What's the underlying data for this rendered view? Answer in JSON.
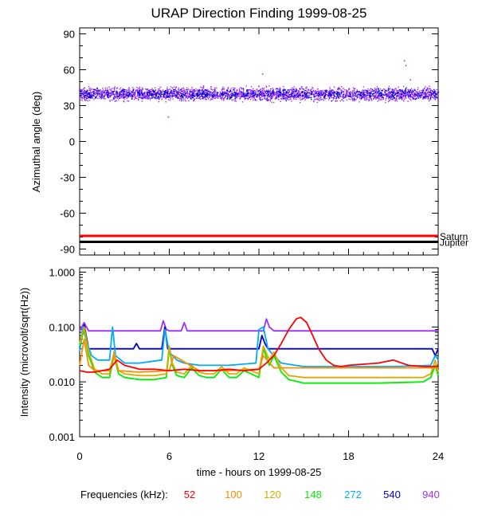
{
  "chart_data": [
    {
      "type": "scatter",
      "title": "URAP Direction Finding  1999-08-25",
      "xlabel": "",
      "ylabel": "Azimuthal angle (deg)",
      "xlim": [
        0,
        24
      ],
      "ylim": [
        -95,
        95
      ],
      "y_ticks": [
        "90",
        "60",
        "30",
        "0",
        "-30",
        "-60",
        "-90"
      ],
      "y_tick_values": [
        90,
        60,
        30,
        0,
        -30,
        -60,
        -90
      ],
      "series": [
        {
          "name": "940 kHz azimuth",
          "color": "#9b30ff",
          "center": 40,
          "spread": 8,
          "outliers": [
            [
              5.9,
              21
            ],
            [
              12.2,
              57
            ],
            [
              21.7,
              68
            ],
            [
              21.8,
              64
            ],
            [
              22.1,
              52
            ]
          ]
        },
        {
          "name": "540 kHz azimuth",
          "color": "#0000cc",
          "center": 40,
          "spread": 6
        }
      ],
      "reference_lines": [
        {
          "label": "Saturn",
          "value": -79,
          "color": "#ff0000"
        },
        {
          "label": "Jupiter",
          "value": -84,
          "color": "#000000"
        }
      ]
    },
    {
      "type": "line",
      "ylabel": "Intensity (microvolt/sqrt(Hz))",
      "xlabel": "time - hours on 1999-08-25",
      "xlim": [
        0,
        24
      ],
      "yscale": "log",
      "ylim": [
        0.001,
        1.2
      ],
      "y_ticks": [
        "1.000",
        "0.100",
        "0.010",
        "0.001"
      ],
      "y_tick_values": [
        1.0,
        0.1,
        0.01,
        0.001
      ],
      "x_ticks": [
        "0",
        "6",
        "12",
        "18",
        "24"
      ],
      "x_tick_values": [
        0,
        6,
        12,
        18,
        24
      ],
      "series": [
        {
          "name": "940",
          "color": "#9b30ff",
          "x": [
            0,
            0.3,
            0.6,
            5.4,
            5.6,
            5.8,
            6.0,
            6.8,
            7.0,
            7.2,
            12.3,
            12.5,
            12.7,
            13.0,
            24
          ],
          "y": [
            0.085,
            0.12,
            0.085,
            0.085,
            0.13,
            0.09,
            0.085,
            0.085,
            0.12,
            0.085,
            0.085,
            0.14,
            0.1,
            0.085,
            0.085
          ]
        },
        {
          "name": "540",
          "color": "#0000cc",
          "x": [
            0,
            0.3,
            0.6,
            3.6,
            3.8,
            4.0,
            5.5,
            5.7,
            5.9,
            12.0,
            12.2,
            12.4,
            12.6,
            23.6,
            23.8,
            24
          ],
          "y": [
            0.04,
            0.11,
            0.04,
            0.04,
            0.05,
            0.04,
            0.04,
            0.1,
            0.04,
            0.04,
            0.07,
            0.05,
            0.04,
            0.04,
            0.03,
            0.04
          ]
        },
        {
          "name": "272",
          "color": "#00aaff",
          "x": [
            0,
            0.2,
            0.5,
            0.8,
            1.2,
            2.0,
            2.2,
            2.4,
            3.0,
            4.0,
            5.5,
            5.7,
            6.0,
            6.5,
            7.0,
            8.0,
            10.0,
            11.8,
            12.0,
            12.3,
            12.6,
            13.0,
            13.5,
            15.0,
            18.0,
            21.0,
            23.5,
            23.8,
            24
          ],
          "y": [
            0.035,
            0.1,
            0.05,
            0.03,
            0.025,
            0.025,
            0.1,
            0.03,
            0.022,
            0.022,
            0.025,
            0.09,
            0.035,
            0.025,
            0.022,
            0.02,
            0.02,
            0.022,
            0.09,
            0.1,
            0.04,
            0.03,
            0.022,
            0.019,
            0.019,
            0.019,
            0.02,
            0.03,
            0.025
          ]
        },
        {
          "name": "148",
          "color": "#00ee00",
          "x": [
            0,
            0.3,
            0.6,
            1.0,
            1.5,
            2.0,
            2.3,
            2.6,
            3.0,
            4.0,
            5.0,
            5.8,
            6.0,
            6.2,
            6.5,
            7.0,
            7.5,
            8.0,
            8.5,
            9.0,
            9.5,
            10.0,
            10.5,
            11.0,
            12.0,
            12.3,
            12.7,
            13.0,
            13.5,
            14.0,
            15.0,
            17.0,
            20.0,
            23.0,
            23.5,
            23.8,
            24
          ],
          "y": [
            0.045,
            0.09,
            0.03,
            0.015,
            0.012,
            0.012,
            0.03,
            0.014,
            0.012,
            0.011,
            0.011,
            0.012,
            0.04,
            0.02,
            0.013,
            0.012,
            0.018,
            0.013,
            0.012,
            0.012,
            0.017,
            0.012,
            0.012,
            0.016,
            0.012,
            0.04,
            0.02,
            0.03,
            0.015,
            0.011,
            0.0095,
            0.0095,
            0.0095,
            0.01,
            0.012,
            0.02,
            0.013
          ]
        },
        {
          "name": "120",
          "color": "#ddaa00",
          "x": [
            0,
            0.3,
            0.6,
            1.0,
            1.5,
            2.0,
            2.3,
            2.6,
            3.0,
            4.0,
            5.0,
            5.8,
            6.0,
            6.2,
            6.5,
            7.0,
            7.5,
            8.0,
            8.5,
            9.0,
            9.5,
            10.0,
            10.5,
            11.0,
            12.0,
            12.3,
            12.7,
            13.0,
            13.5,
            14.0,
            15.0,
            17.0,
            20.0,
            23.0,
            23.5,
            23.8,
            24
          ],
          "y": [
            0.05,
            0.1,
            0.035,
            0.017,
            0.014,
            0.014,
            0.035,
            0.016,
            0.014,
            0.013,
            0.013,
            0.014,
            0.045,
            0.022,
            0.015,
            0.014,
            0.02,
            0.015,
            0.014,
            0.014,
            0.019,
            0.014,
            0.014,
            0.018,
            0.014,
            0.045,
            0.025,
            0.035,
            0.018,
            0.013,
            0.012,
            0.012,
            0.012,
            0.012,
            0.014,
            0.025,
            0.015
          ]
        },
        {
          "name": "100",
          "color": "#ff8c00",
          "x": [
            0,
            0.3,
            0.6,
            1.0,
            2.0,
            2.3,
            2.6,
            4.0,
            6.0,
            6.3,
            8.0,
            10.0,
            12.0,
            12.3,
            13.0,
            14.0,
            18.0,
            23.5,
            24
          ],
          "y": [
            0.02,
            0.06,
            0.02,
            0.016,
            0.016,
            0.03,
            0.016,
            0.015,
            0.016,
            0.03,
            0.016,
            0.016,
            0.017,
            0.03,
            0.018,
            0.018,
            0.018,
            0.018,
            0.018
          ]
        },
        {
          "name": "52",
          "color": "#ff0000",
          "x": [
            0,
            0.5,
            1.0,
            1.5,
            2.0,
            2.5,
            3.0,
            4.0,
            5.0,
            6.0,
            7.0,
            8.0,
            9.0,
            10.0,
            11.0,
            12.0,
            12.5,
            13.0,
            13.5,
            14.0,
            14.5,
            14.8,
            15.2,
            15.6,
            16.0,
            16.5,
            17.0,
            17.5,
            18.0,
            19.0,
            20.0,
            21.0,
            22.0,
            23.0,
            24
          ],
          "y": [
            0.016,
            0.015,
            0.015,
            0.016,
            0.017,
            0.025,
            0.02,
            0.017,
            0.017,
            0.016,
            0.017,
            0.016,
            0.016,
            0.017,
            0.016,
            0.017,
            0.022,
            0.03,
            0.05,
            0.09,
            0.14,
            0.15,
            0.12,
            0.07,
            0.04,
            0.025,
            0.02,
            0.019,
            0.02,
            0.021,
            0.022,
            0.025,
            0.02,
            0.019,
            0.019
          ]
        }
      ]
    }
  ],
  "legend": {
    "label": "Frequencies (kHz):",
    "items": [
      {
        "text": "52",
        "color": "#ff0000"
      },
      {
        "text": "100",
        "color": "#ff8c00"
      },
      {
        "text": "120",
        "color": "#ddaa00"
      },
      {
        "text": "148",
        "color": "#00ee00"
      },
      {
        "text": "272",
        "color": "#00aaff"
      },
      {
        "text": "540",
        "color": "#0000cc"
      },
      {
        "text": "940",
        "color": "#9b30ff"
      }
    ]
  }
}
